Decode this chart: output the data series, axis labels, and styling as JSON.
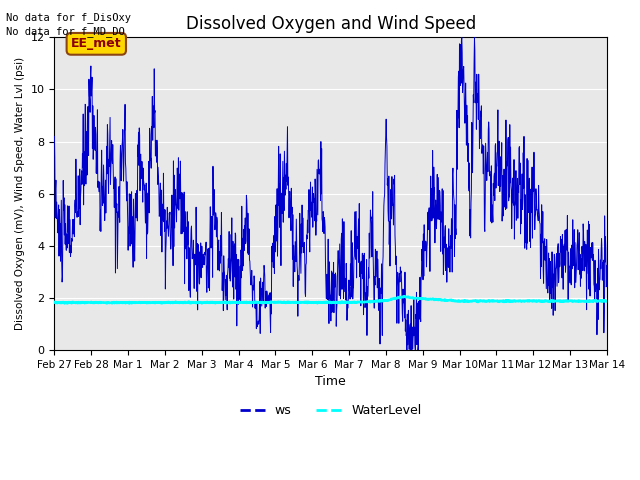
{
  "title": "Dissolved Oxygen and Wind Speed",
  "ylabel": "Dissolved Oxygen (mV), Wind Speed, Water Lvl (psi)",
  "xlabel": "Time",
  "ylim": [
    0,
    12
  ],
  "yticks": [
    0,
    2,
    4,
    6,
    8,
    10,
    12
  ],
  "xlabels": [
    "Feb 27",
    "Feb 28",
    "Mar 1",
    "Mar 2",
    "Mar 3",
    "Mar 4",
    "Mar 5",
    "Mar 6",
    "Mar 7",
    "Mar 8",
    "Mar 9",
    "Mar 10",
    "Mar 11",
    "Mar 12",
    "Mar 13",
    "Mar 14"
  ],
  "xtick_positions": [
    0,
    1,
    2,
    3,
    4,
    5,
    6,
    7,
    8,
    9,
    10,
    11,
    12,
    13,
    14,
    15
  ],
  "annotations_line1": "No data for f_DisOxy",
  "annotations_line2": "No data for f_MD_DO",
  "tag_label": "EE_met",
  "ws_color": "#0000CD",
  "wl_color": "#00FFFF",
  "bg_color": "#E8E8E8",
  "legend_ws": "ws",
  "legend_wl": "WaterLevel",
  "title_fontsize": 12,
  "ws_key_times": [
    0,
    0.1,
    0.3,
    0.5,
    0.7,
    0.8,
    0.9,
    1.0,
    1.1,
    1.3,
    1.5,
    1.6,
    1.7,
    1.8,
    1.9,
    2.0,
    2.1,
    2.2,
    2.3,
    2.5,
    2.7,
    2.9,
    3.0,
    3.2,
    3.4,
    3.5,
    3.7,
    3.9,
    4.0,
    4.2,
    4.3,
    4.5,
    4.7,
    4.8,
    5.0,
    5.2,
    5.3,
    5.4,
    5.5,
    5.6,
    5.7,
    5.8,
    5.9,
    6.0,
    6.1,
    6.3,
    6.5,
    6.6,
    6.7,
    6.8,
    7.0,
    7.1,
    7.2,
    7.3,
    7.4,
    7.5,
    7.6,
    7.8,
    8.0,
    8.1,
    8.2,
    8.3,
    8.4,
    8.5,
    8.6,
    8.7,
    8.8,
    8.9,
    9.0,
    9.1,
    9.2,
    9.3,
    9.4,
    9.5,
    9.6,
    9.7,
    9.8,
    9.9,
    10.0,
    10.1,
    10.3,
    10.5,
    10.7,
    10.8,
    10.9,
    11.0,
    11.05,
    11.1,
    11.15,
    11.2,
    11.3,
    11.4,
    11.5,
    11.6,
    11.7,
    11.8,
    11.9,
    12.0,
    12.2,
    12.3,
    12.5,
    12.6,
    12.8,
    13.0,
    13.2,
    13.4,
    13.5,
    13.8,
    14.0,
    14.2,
    14.5,
    14.7,
    15.0
  ],
  "ws_key_vals": [
    7.0,
    4.5,
    4.3,
    4.5,
    6.1,
    7.0,
    8.9,
    10.2,
    8.0,
    5.2,
    7.6,
    6.5,
    5.0,
    7.0,
    8.0,
    4.8,
    5.0,
    4.8,
    7.8,
    5.3,
    9.3,
    5.0,
    4.5,
    4.5,
    6.7,
    4.5,
    3.5,
    3.5,
    3.3,
    3.5,
    5.8,
    3.2,
    2.8,
    3.8,
    2.5,
    4.8,
    3.5,
    2.5,
    2.2,
    1.8,
    2.2,
    2.0,
    2.5,
    4.8,
    5.5,
    6.6,
    3.5,
    3.0,
    4.0,
    3.5,
    6.5,
    5.1,
    7.4,
    4.4,
    3.2,
    2.3,
    2.5,
    3.2,
    2.5,
    3.0,
    5.1,
    3.2,
    2.5,
    3.2,
    5.0,
    3.0,
    2.5,
    1.8,
    9.0,
    4.5,
    6.8,
    2.3,
    3.2,
    1.4,
    0.6,
    0.3,
    0.5,
    1.5,
    3.5,
    4.5,
    6.0,
    4.8,
    3.5,
    6.0,
    5.5,
    10.9,
    11.7,
    10.5,
    9.0,
    8.2,
    4.8,
    10.8,
    9.5,
    8.0,
    6.5,
    7.5,
    5.0,
    7.4,
    6.0,
    7.5,
    4.8,
    6.5,
    5.4,
    6.0,
    4.0,
    3.5,
    2.8,
    3.8,
    3.5,
    3.9,
    3.5,
    2.7,
    3.0
  ],
  "wl_key_times": [
    0,
    2,
    5,
    8,
    8.5,
    9.0,
    9.3,
    9.5,
    9.8,
    10.2,
    10.8,
    11.0,
    12,
    14,
    15
  ],
  "wl_key_vals": [
    1.82,
    1.82,
    1.83,
    1.83,
    1.85,
    1.9,
    2.0,
    2.05,
    1.98,
    1.95,
    1.9,
    1.88,
    1.88,
    1.88,
    1.88
  ]
}
